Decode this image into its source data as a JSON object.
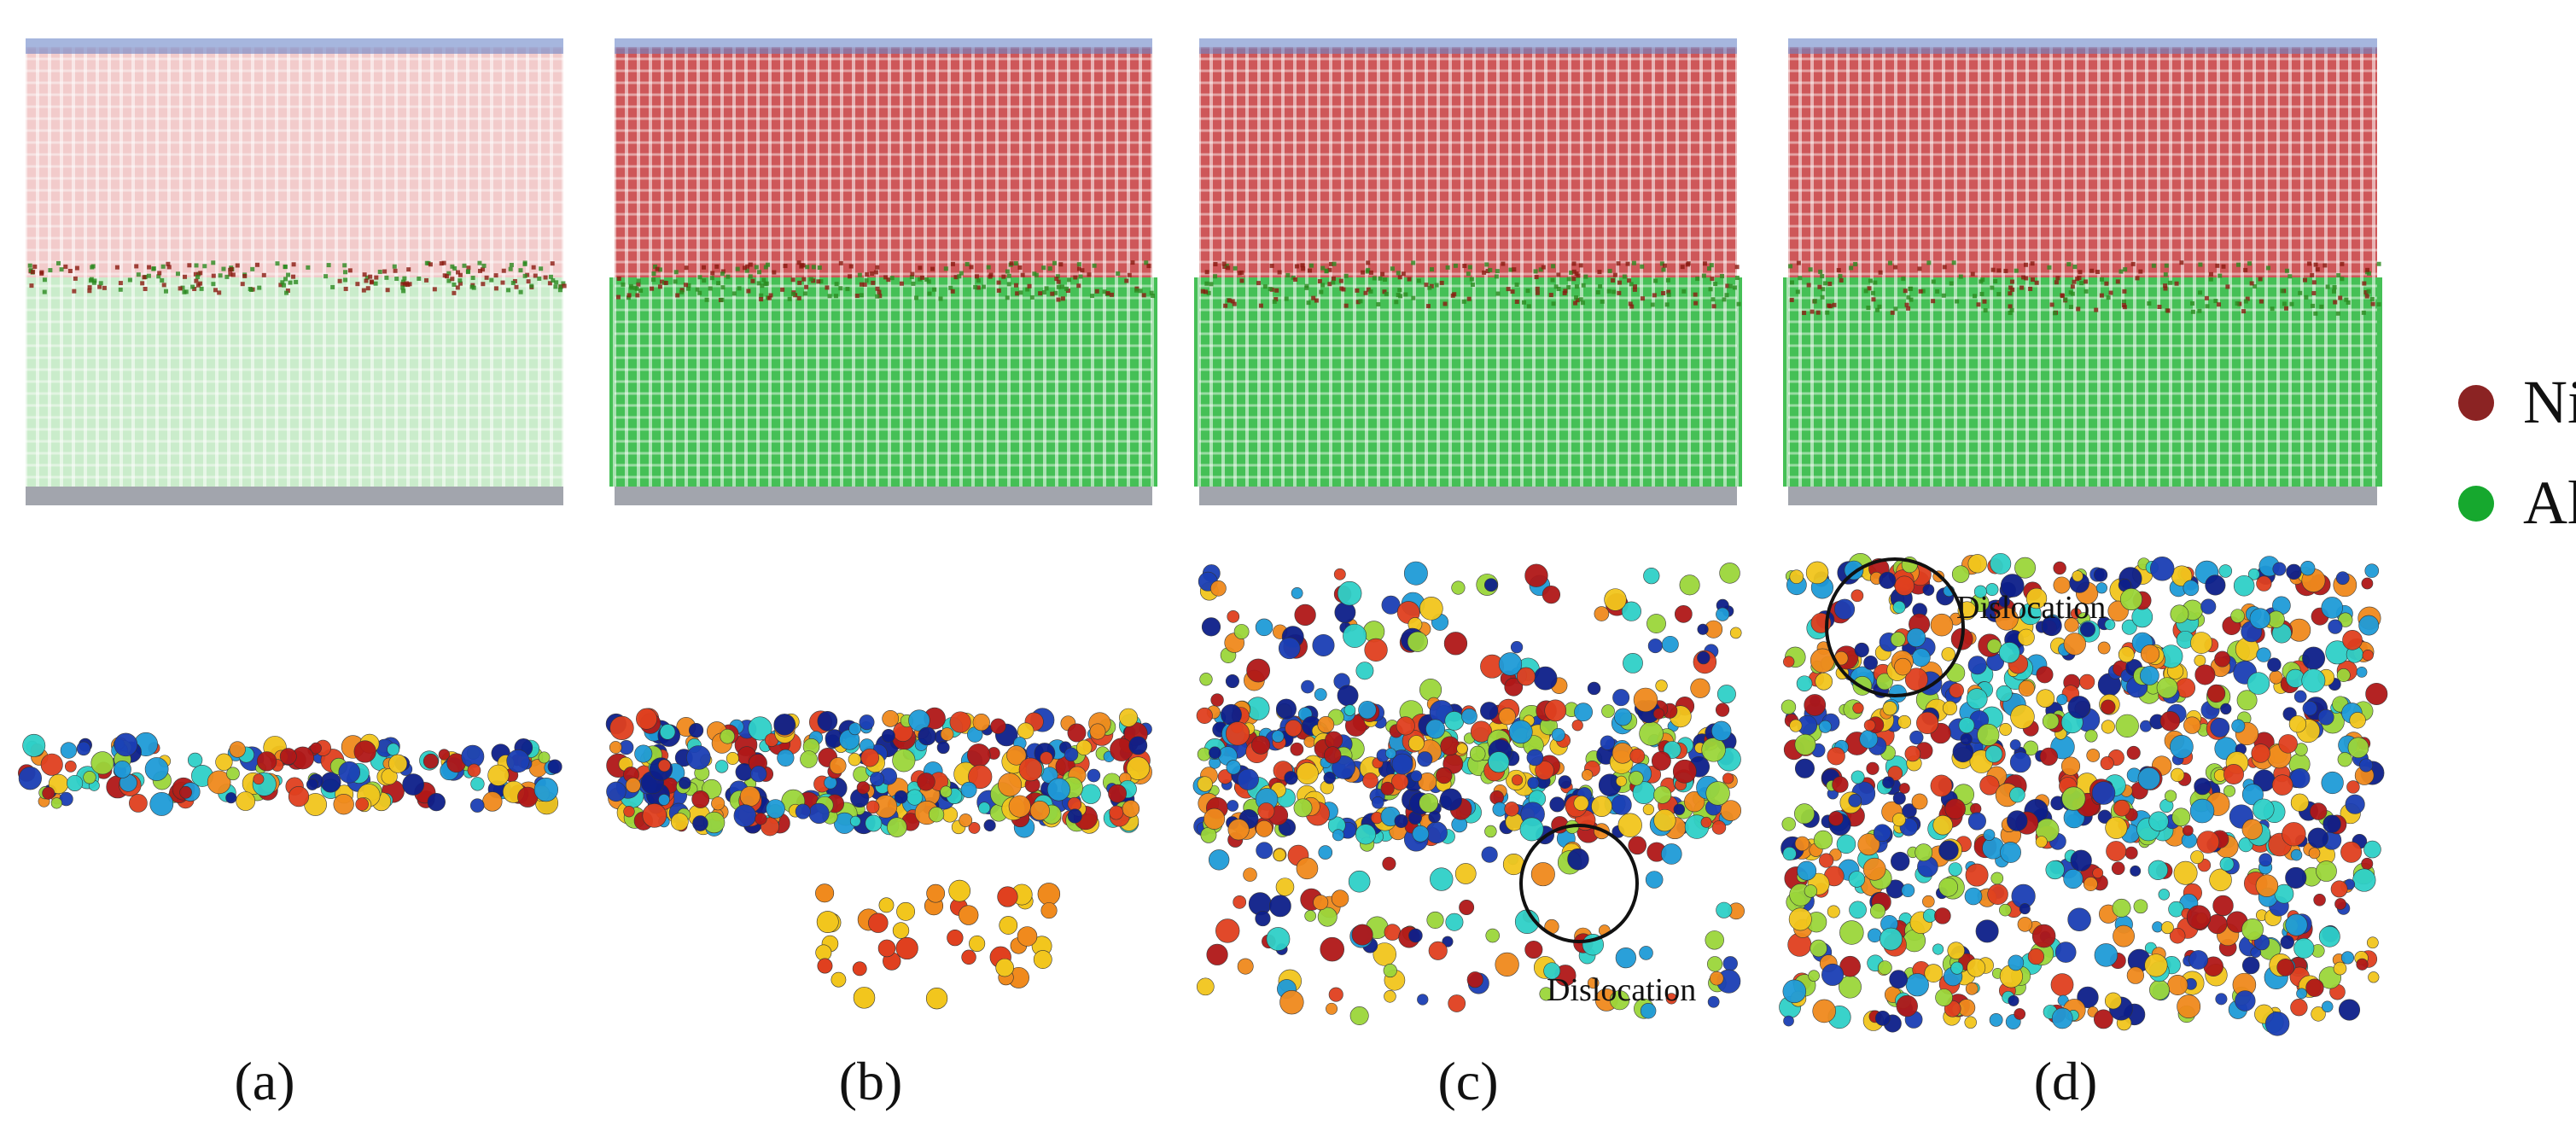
{
  "figure": {
    "panels": [
      {
        "caption": "(a)",
        "interface_roughness": 0.15,
        "deformation": 0.0,
        "defect_layer": "thin",
        "dislocation": false
      },
      {
        "caption": "(b)",
        "interface_roughness": 0.35,
        "deformation": 0.2,
        "defect_layer": "band",
        "dislocation": false
      },
      {
        "caption": "(c)",
        "interface_roughness": 0.55,
        "deformation": 0.45,
        "defect_layer": "scattered",
        "dislocation": true,
        "dislocation_label": "Dislocation"
      },
      {
        "caption": "(d)",
        "interface_roughness": 0.75,
        "deformation": 0.7,
        "defect_layer": "dense",
        "dislocation": true,
        "dislocation_label": "Dislocation"
      }
    ],
    "legend": [
      {
        "label": "Ni",
        "color": "#8b2323"
      },
      {
        "label": "Al",
        "color": "#16a82e"
      }
    ],
    "colors": {
      "ni_lattice": "#c0282a",
      "ni_lattice_light": "#e8a0a0",
      "al_lattice": "#17b02c",
      "al_lattice_light": "#a6e0a8",
      "top_layer": "#6a86c8",
      "bottom_layer": "#7a7f8a",
      "atom_palette": [
        "#b01818",
        "#e0401f",
        "#f08a1d",
        "#f2c61d",
        "#9bd63a",
        "#2fd0c8",
        "#1f9bd8",
        "#1b3fb5",
        "#0d1f8a"
      ]
    }
  }
}
